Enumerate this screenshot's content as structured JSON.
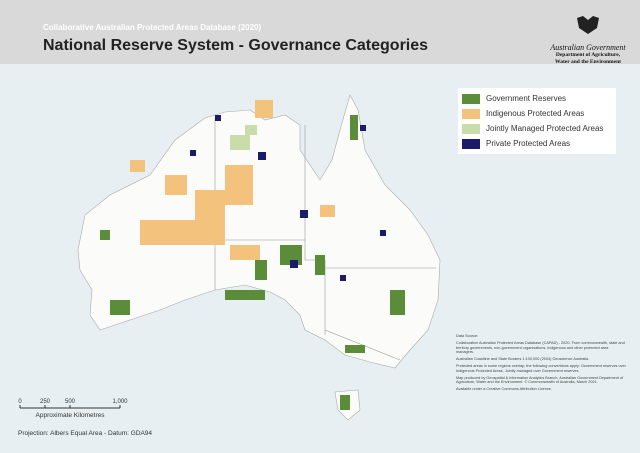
{
  "header": {
    "subtitle": "Collaborative Australian Protected Areas Database (2020)",
    "title": "National Reserve System - Governance Categories",
    "logo": {
      "name": "Australian Government",
      "department": "Department of Agriculture, Water and the Environment"
    }
  },
  "legend": [
    {
      "label": "Government Reserves",
      "color": "#5b8c3a"
    },
    {
      "label": "Indigenous Protected Areas",
      "color": "#f3c27d"
    },
    {
      "label": "Jointly Managed Protected Areas",
      "color": "#c9ddaa"
    },
    {
      "label": "Private Protected Areas",
      "color": "#1b1a6b"
    }
  ],
  "scale": {
    "ticks": [
      {
        "value": 0,
        "label": "0"
      },
      {
        "value": 250,
        "label": "250"
      },
      {
        "value": 500,
        "label": "500"
      },
      {
        "value": 1000,
        "label": "1,000"
      }
    ],
    "max": 1000,
    "unit": "Approximate Kilometres"
  },
  "projection": "Projection: Albers Equal Area - Datum: GDA94",
  "notes": [
    "Data Source:",
    "Collaborative Australian Protected Areas Database (CAPAD) - 2020. From commonwealth, state and territory governments, non-government organisations, indigenous and other protected area managers.",
    "Australian Coastline and State Borders 1:100,000 (2004) Geoscience Australia.",
    "Protected areas in some regions overlap; the following conventions apply: Government reserves over Indigenous Protected Areas, Jointly managed over Government reserves.",
    "Map produced by Geospatial & Information Analytics Branch, Australian Government Department of Agriculture, Water and the Environment. © Commonwealth of Australia, March 2021.",
    "Available under a Creative Commons Attribution Licence."
  ]
}
